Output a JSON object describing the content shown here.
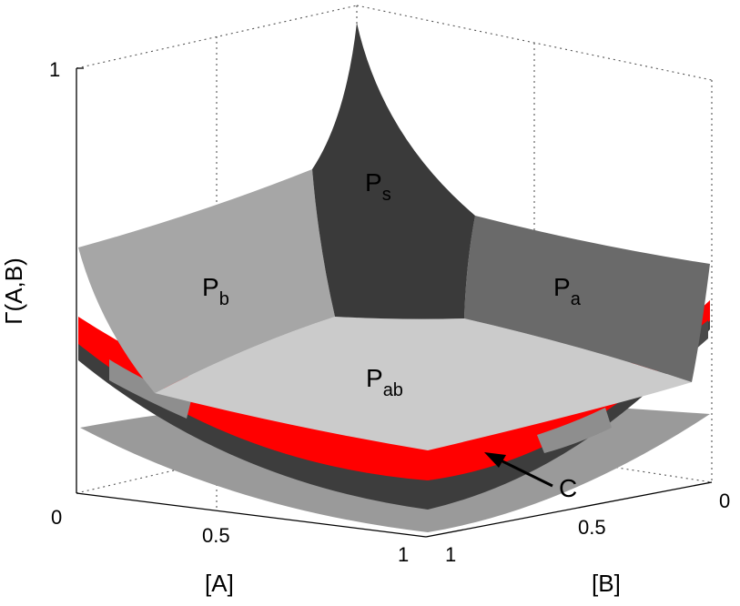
{
  "chart_data": {
    "type": "surface",
    "zlabel": "Γ(A,B)",
    "xlabel": "[A]",
    "ylabel": "[B]",
    "xticks": [
      "0",
      "0.5",
      "1"
    ],
    "yticks": [
      "0",
      "0.5",
      "1"
    ],
    "zticks": [
      "0",
      "1"
    ],
    "grid": true,
    "regions": [
      {
        "main": "P",
        "sub": "s",
        "color": "#3a3a3a"
      },
      {
        "main": "P",
        "sub": "b",
        "color": "#a6a6a6"
      },
      {
        "main": "P",
        "sub": "a",
        "color": "#6a6a6a"
      },
      {
        "main": "P",
        "sub": "ab",
        "color": "#cbcbcb"
      }
    ],
    "annotations": [
      {
        "text": "C"
      }
    ],
    "accent_colors": {
      "red": "#ff0000",
      "dark": "#3d3d3d",
      "mid": "#8c8c8c"
    }
  }
}
